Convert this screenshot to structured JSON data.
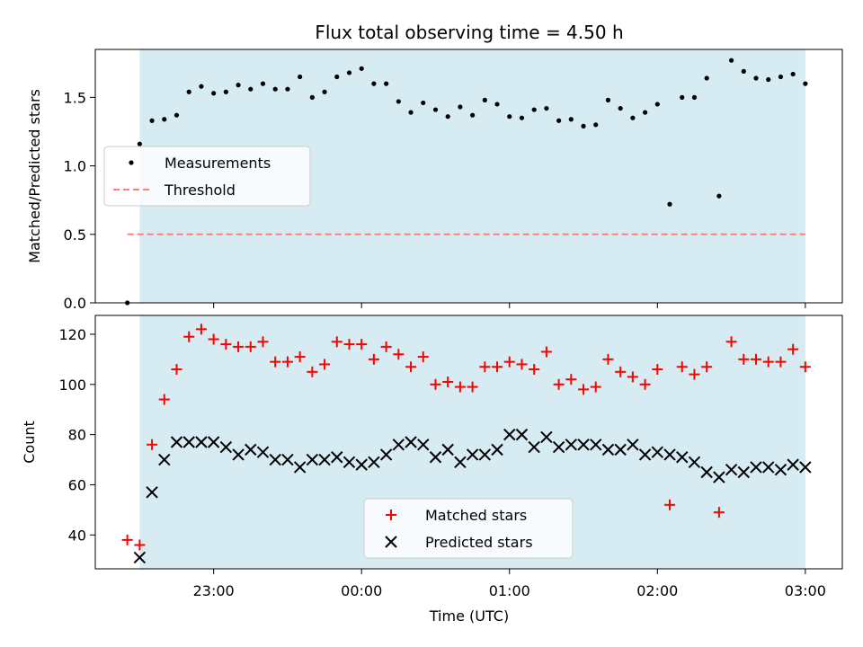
{
  "chart_data": [
    {
      "type": "scatter",
      "title": "Flux total observing time = 4.50 h",
      "xlabel": "",
      "ylabel": "Matched/Predicted stars",
      "ylim": [
        0,
        1.85
      ],
      "yticks": [
        "0.0",
        "0.5",
        "1.0",
        "1.5"
      ],
      "xlim_hours": [
        -1.8,
        3.25
      ],
      "shaded_span_hours": [
        -1.5,
        3.0
      ],
      "shaded_color": "#add8e6",
      "legend_placement": "center-left",
      "threshold": {
        "name": "Threshold",
        "value": 0.5,
        "color": "#ff7f7f"
      },
      "series": [
        {
          "name": "Measurements",
          "color": "#000000",
          "x": [
            "22:25",
            "22:30",
            "22:35",
            "22:40",
            "22:45",
            "22:50",
            "22:55",
            "23:00",
            "23:05",
            "23:10",
            "23:15",
            "23:20",
            "23:25",
            "23:30",
            "23:35",
            "23:40",
            "23:45",
            "23:50",
            "23:55",
            "00:00",
            "00:05",
            "00:10",
            "00:15",
            "00:20",
            "00:25",
            "00:30",
            "00:35",
            "00:40",
            "00:45",
            "00:50",
            "00:55",
            "01:00",
            "01:05",
            "01:10",
            "01:15",
            "01:20",
            "01:25",
            "01:30",
            "01:35",
            "01:40",
            "01:45",
            "01:50",
            "01:55",
            "02:00",
            "02:05",
            "02:10",
            "02:15",
            "02:20",
            "02:25",
            "02:30",
            "02:35",
            "02:40",
            "02:45",
            "02:50",
            "02:55",
            "03:00"
          ],
          "y": [
            0.0,
            1.16,
            1.33,
            1.34,
            1.37,
            1.54,
            1.58,
            1.53,
            1.54,
            1.59,
            1.56,
            1.6,
            1.56,
            1.56,
            1.65,
            1.5,
            1.54,
            1.65,
            1.68,
            1.71,
            1.6,
            1.6,
            1.47,
            1.39,
            1.46,
            1.41,
            1.36,
            1.43,
            1.37,
            1.48,
            1.45,
            1.36,
            1.35,
            1.41,
            1.42,
            1.33,
            1.34,
            1.29,
            1.3,
            1.48,
            1.42,
            1.35,
            1.39,
            1.45,
            0.72,
            1.5,
            1.5,
            1.64,
            0.78,
            1.77,
            1.69,
            1.64,
            1.63,
            1.65,
            1.67,
            1.6
          ]
        }
      ]
    },
    {
      "type": "scatter",
      "title": "",
      "xlabel": "Time (UTC)",
      "ylabel": "Count",
      "ylim": [
        26.5,
        127.5
      ],
      "yticks": [
        "40",
        "60",
        "80",
        "100",
        "120"
      ],
      "xticks": [
        "23:00",
        "00:00",
        "01:00",
        "02:00",
        "03:00"
      ],
      "xlim_hours": [
        -1.8,
        3.25
      ],
      "shaded_span_hours": [
        -1.5,
        3.0
      ],
      "legend_placement": "lower-center",
      "series": [
        {
          "name": "Matched stars",
          "marker": "plus",
          "color": "#ff0000",
          "x": [
            "22:25",
            "22:30",
            "22:35",
            "22:40",
            "22:45",
            "22:50",
            "22:55",
            "23:00",
            "23:05",
            "23:10",
            "23:15",
            "23:20",
            "23:25",
            "23:30",
            "23:35",
            "23:40",
            "23:45",
            "23:50",
            "23:55",
            "00:00",
            "00:05",
            "00:10",
            "00:15",
            "00:20",
            "00:25",
            "00:30",
            "00:35",
            "00:40",
            "00:45",
            "00:50",
            "00:55",
            "01:00",
            "01:05",
            "01:10",
            "01:15",
            "01:20",
            "01:25",
            "01:30",
            "01:35",
            "01:40",
            "01:45",
            "01:50",
            "01:55",
            "02:00",
            "02:05",
            "02:10",
            "02:15",
            "02:20",
            "02:25",
            "02:30",
            "02:35",
            "02:40",
            "02:45",
            "02:50",
            "02:55",
            "03:00"
          ],
          "y": [
            38,
            36,
            76,
            94,
            106,
            119,
            122,
            118,
            116,
            115,
            115,
            117,
            109,
            109,
            111,
            105,
            108,
            117,
            116,
            116,
            110,
            115,
            112,
            107,
            111,
            100,
            101,
            99,
            99,
            107,
            107,
            109,
            108,
            106,
            113,
            100,
            102,
            98,
            99,
            110,
            105,
            103,
            100,
            106,
            52,
            107,
            104,
            107,
            49,
            117,
            110,
            110,
            109,
            109,
            114,
            107
          ]
        },
        {
          "name": "Predicted stars",
          "marker": "x",
          "color": "#000000",
          "x": [
            "22:30",
            "22:35",
            "22:40",
            "22:45",
            "22:50",
            "22:55",
            "23:00",
            "23:05",
            "23:10",
            "23:15",
            "23:20",
            "23:25",
            "23:30",
            "23:35",
            "23:40",
            "23:45",
            "23:50",
            "23:55",
            "00:00",
            "00:05",
            "00:10",
            "00:15",
            "00:20",
            "00:25",
            "00:30",
            "00:35",
            "00:40",
            "00:45",
            "00:50",
            "00:55",
            "01:00",
            "01:05",
            "01:10",
            "01:15",
            "01:20",
            "01:25",
            "01:30",
            "01:35",
            "01:40",
            "01:45",
            "01:50",
            "01:55",
            "02:00",
            "02:05",
            "02:10",
            "02:15",
            "02:20",
            "02:25",
            "02:30",
            "02:35",
            "02:40",
            "02:45",
            "02:50",
            "02:55",
            "03:00"
          ],
          "y": [
            31,
            57,
            70,
            77,
            77,
            77,
            77,
            75,
            72,
            74,
            73,
            70,
            70,
            67,
            70,
            70,
            71,
            69,
            68,
            69,
            72,
            76,
            77,
            76,
            71,
            74,
            69,
            72,
            72,
            74,
            80,
            80,
            75,
            79,
            75,
            76,
            76,
            76,
            74,
            74,
            76,
            72,
            73,
            72,
            71,
            69,
            65,
            63,
            66,
            65,
            67,
            67,
            66,
            68,
            67
          ]
        }
      ]
    }
  ]
}
